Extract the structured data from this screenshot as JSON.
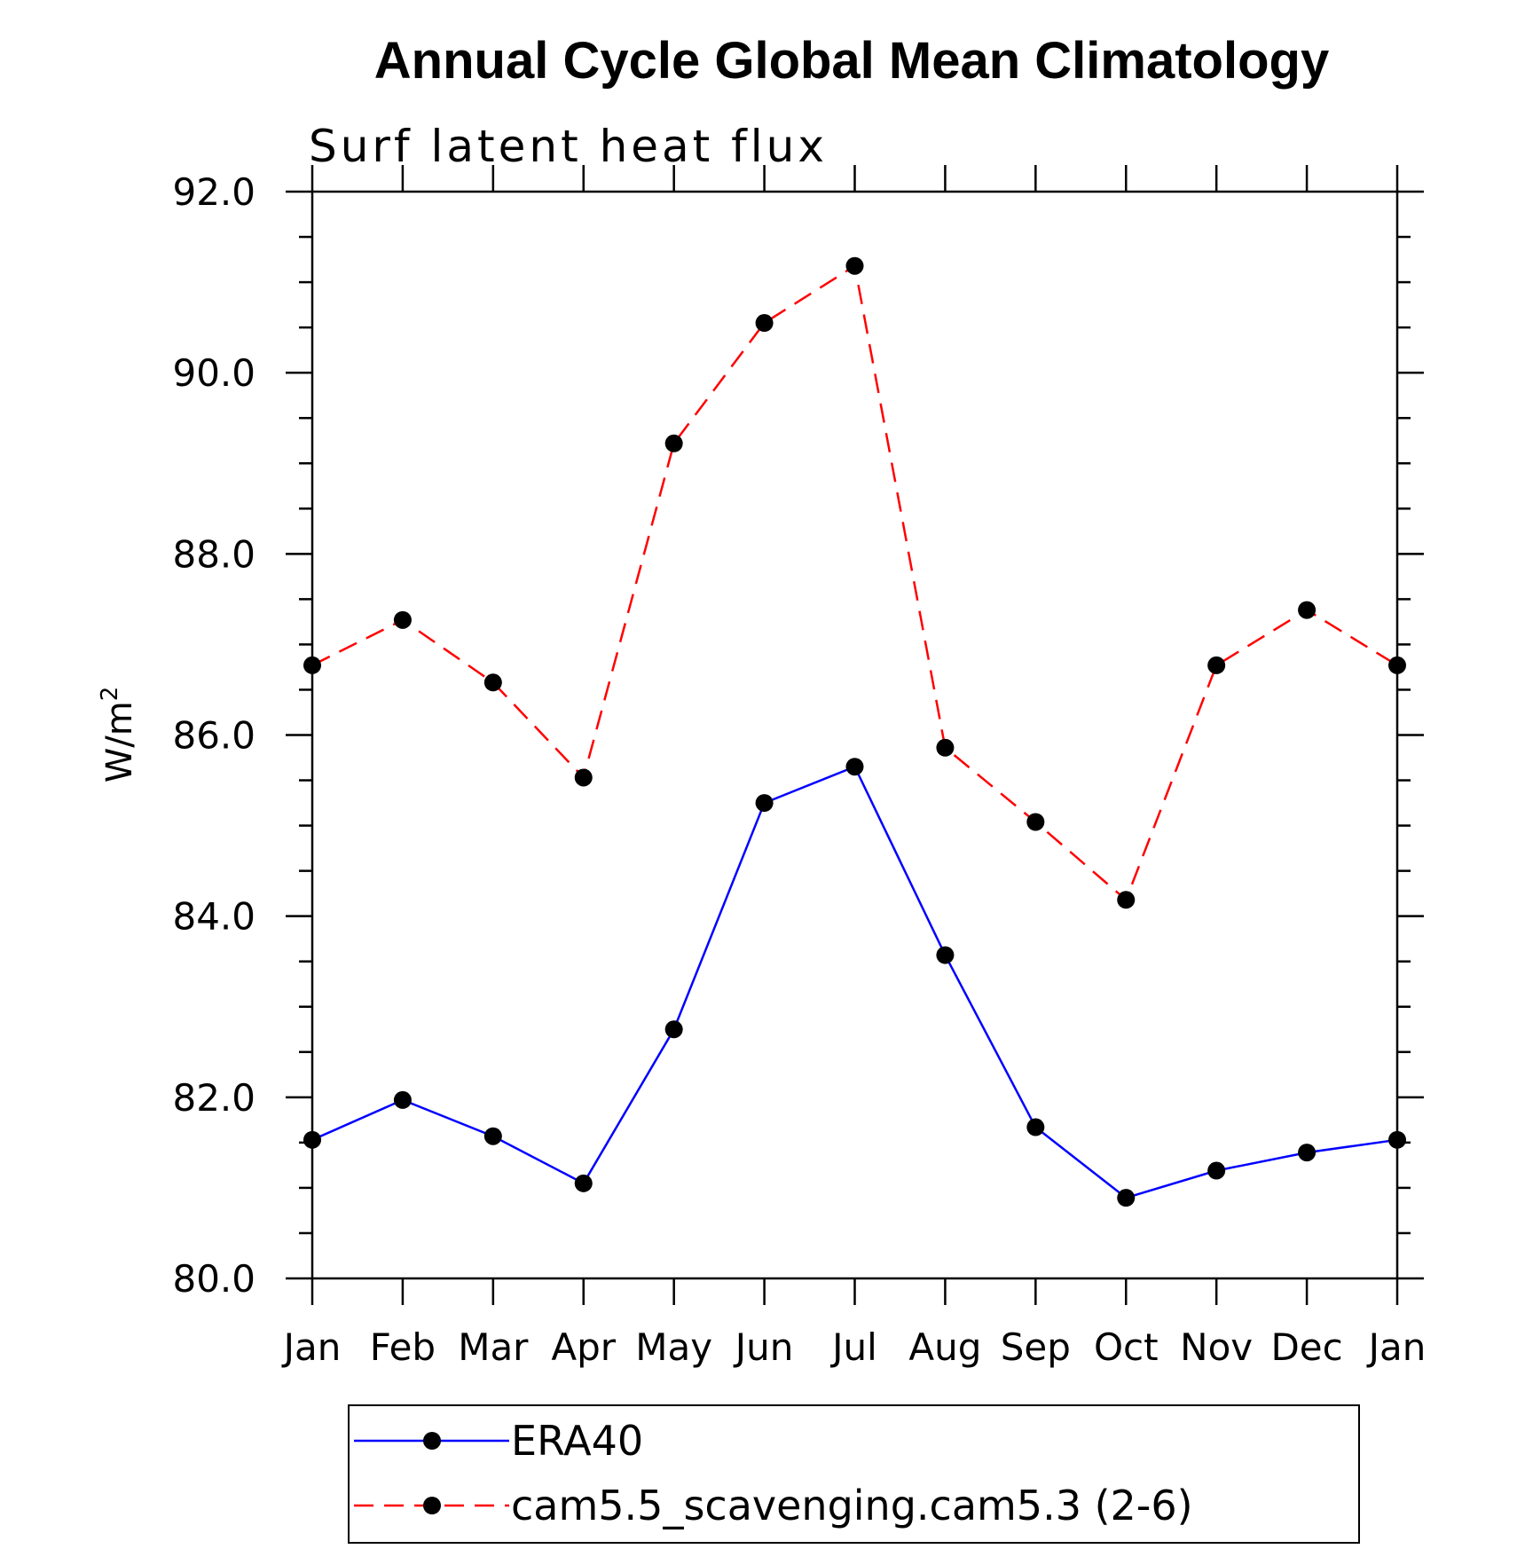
{
  "chart_data": {
    "type": "line",
    "title": "Annual Cycle Global Mean Climatology",
    "subtitle": "Surf latent heat flux",
    "ylabel": "W/m",
    "ylabel_superscript": "2",
    "xlabel": "",
    "categories": [
      "Jan",
      "Feb",
      "Mar",
      "Apr",
      "May",
      "Jun",
      "Jul",
      "Aug",
      "Sep",
      "Oct",
      "Nov",
      "Dec",
      "Jan"
    ],
    "ylim": [
      80.0,
      92.0
    ],
    "yticks": [
      "80.0",
      "82.0",
      "84.0",
      "86.0",
      "88.0",
      "90.0",
      "92.0"
    ],
    "grid": false,
    "legend_position": "bottom",
    "series": [
      {
        "name": "ERA40",
        "color": "#0000ff",
        "style": "solid",
        "values": [
          81.53,
          81.97,
          81.57,
          81.05,
          82.75,
          85.25,
          85.65,
          83.57,
          81.67,
          80.89,
          81.19,
          81.39,
          81.53
        ]
      },
      {
        "name": "cam5.5_scavenging.cam5.3 (2-6)",
        "color": "#ff0000",
        "style": "dashed",
        "values": [
          86.77,
          87.27,
          86.58,
          85.53,
          89.22,
          90.55,
          91.18,
          85.86,
          85.04,
          84.18,
          86.77,
          87.38,
          86.77
        ]
      }
    ]
  }
}
